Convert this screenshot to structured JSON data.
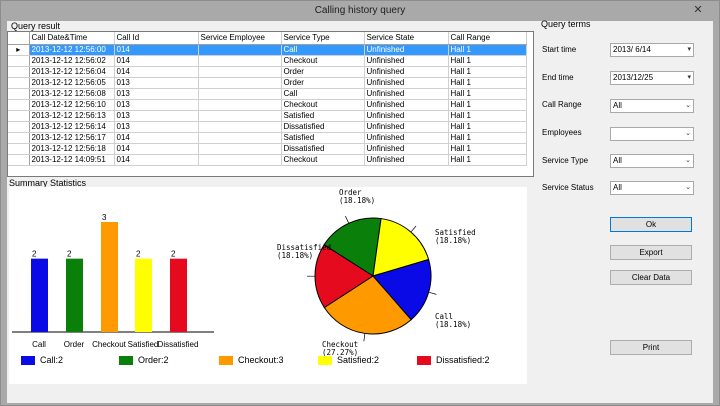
{
  "window": {
    "title": "Calling history query",
    "close_glyph": "✕"
  },
  "query_result": {
    "title": "Query result",
    "columns": [
      "Call Date&Time",
      "Call Id",
      "Service Employee",
      "Service Type",
      "Service State",
      "Call Range"
    ],
    "current_row_marker": "▸",
    "rows": [
      [
        "2013-12-12 12:56:00",
        "014",
        "",
        "Call",
        "Unfinished",
        "Hall 1"
      ],
      [
        "2013-12-12 12:56:02",
        "014",
        "",
        "Checkout",
        "Unfinished",
        "Hall 1"
      ],
      [
        "2013-12-12 12:56:04",
        "014",
        "",
        "Order",
        "Unfinished",
        "Hall 1"
      ],
      [
        "2013-12-12 12:56:05",
        "013",
        "",
        "Order",
        "Unfinished",
        "Hall 1"
      ],
      [
        "2013-12-12 12:56:08",
        "013",
        "",
        "Call",
        "Unfinished",
        "Hall 1"
      ],
      [
        "2013-12-12 12:56:10",
        "013",
        "",
        "Checkout",
        "Unfinished",
        "Hall 1"
      ],
      [
        "2013-12-12 12:56:13",
        "013",
        "",
        "Satisfied",
        "Unfinished",
        "Hall 1"
      ],
      [
        "2013-12-12 12:56:14",
        "013",
        "",
        "Dissatisfied",
        "Unfinished",
        "Hall 1"
      ],
      [
        "2013-12-12 12:56:17",
        "014",
        "",
        "Satisfied",
        "Unfinished",
        "Hall 1"
      ],
      [
        "2013-12-12 12:56:18",
        "014",
        "",
        "Dissatisfied",
        "Unfinished",
        "Hall 1"
      ],
      [
        "2013-12-12 14:09:51",
        "014",
        "",
        "Checkout",
        "Unfinished",
        "Hall 1"
      ]
    ]
  },
  "summary": {
    "title": "Summary Statistics",
    "categories": [
      "Call",
      "Order",
      "Checkout",
      "Satisfied",
      "Dissatisfied"
    ],
    "values": [
      2,
      2,
      3,
      2,
      2
    ],
    "colors": [
      "#0a0ae6",
      "#0a800a",
      "#ff9900",
      "#ffff00",
      "#e60a1e"
    ],
    "legend": [
      "Call:2",
      "Order:2",
      "Checkout:3",
      "Satisfied:2",
      "Dissatisfied:2"
    ],
    "pie_labels": [
      [
        "Call",
        "(18.18%)"
      ],
      [
        "Order",
        "(18.18%)"
      ],
      [
        "Checkout",
        "(27.27%)"
      ],
      [
        "Satisfied",
        "(18.18%)"
      ],
      [
        "Dissatisfied",
        "(18.18%)"
      ]
    ],
    "pie_order": [
      "Order",
      "Satisfied",
      "Call",
      "Checkout",
      "Dissatisfied"
    ]
  },
  "query_terms": {
    "title": "Query terms",
    "start_time": {
      "label": "Start time",
      "value": "2013/  6/14"
    },
    "end_time": {
      "label": "End time",
      "value": "2013/12/25"
    },
    "call_range": {
      "label": "Call Range",
      "value": "All"
    },
    "employees": {
      "label": "Employees",
      "value": ""
    },
    "service_type": {
      "label": "Service Type",
      "value": "All"
    },
    "service_status": {
      "label": "Service Status",
      "value": "All"
    },
    "buttons": {
      "ok": "Ok",
      "export": "Export",
      "clear": "Clear Data",
      "print": "Print"
    }
  }
}
